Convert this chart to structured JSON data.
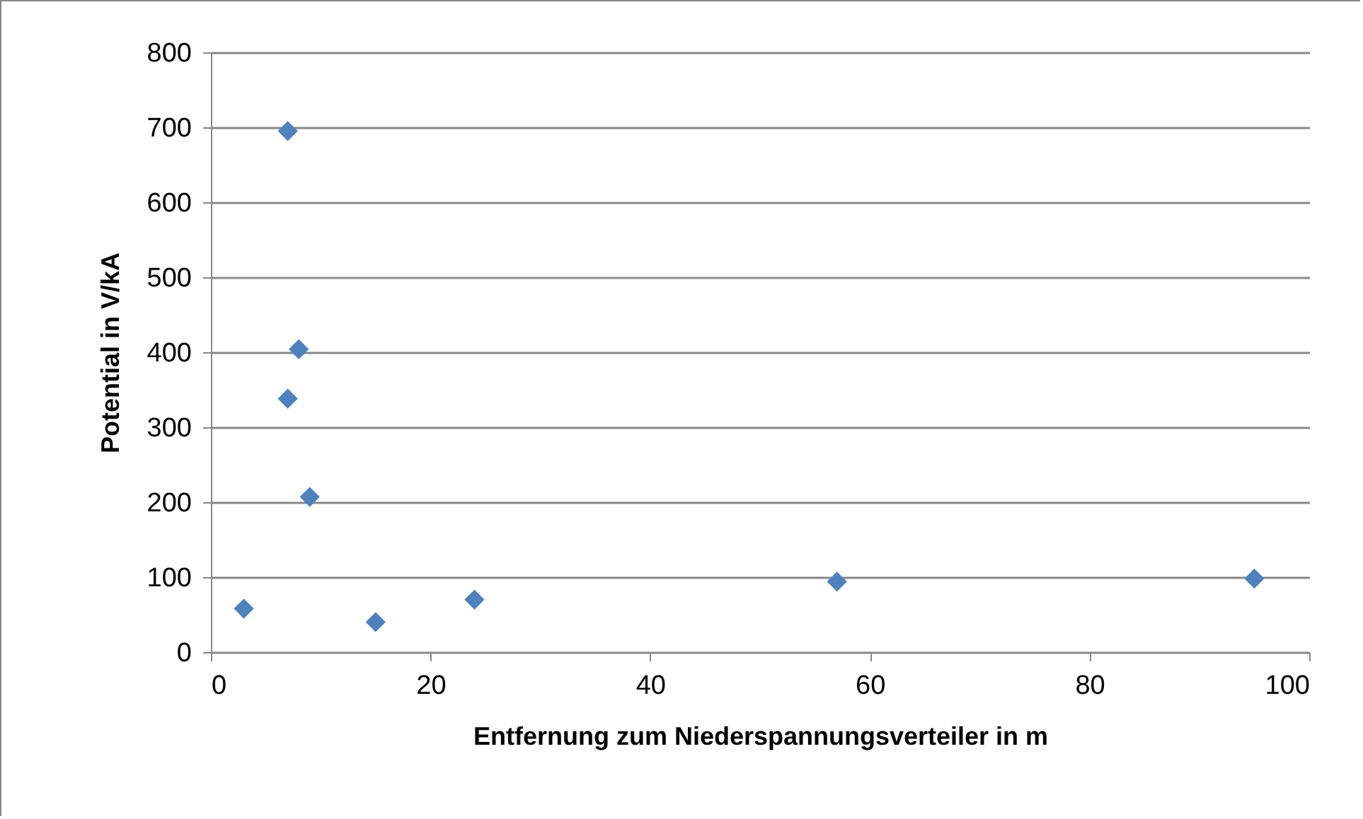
{
  "chart_data": {
    "type": "scatter",
    "xlabel": "Entfernung zum Niederspannungsverteiler in m",
    "ylabel": "Potential in V/kA",
    "x": [
      3,
      7,
      8,
      7,
      9,
      15,
      24,
      57,
      95
    ],
    "series": [
      {
        "color": "#4f81bd",
        "values": [
          58,
          695,
          404,
          338,
          207,
          40,
          70,
          94,
          98
        ]
      }
    ],
    "xlim": [
      0,
      100
    ],
    "xticks": [
      0,
      20,
      40,
      60,
      80,
      100
    ],
    "ylim": [
      0,
      800
    ],
    "yticks": [
      0,
      100,
      200,
      300,
      400,
      500,
      600,
      700,
      800
    ],
    "grid": "y",
    "marker": "diamond"
  }
}
